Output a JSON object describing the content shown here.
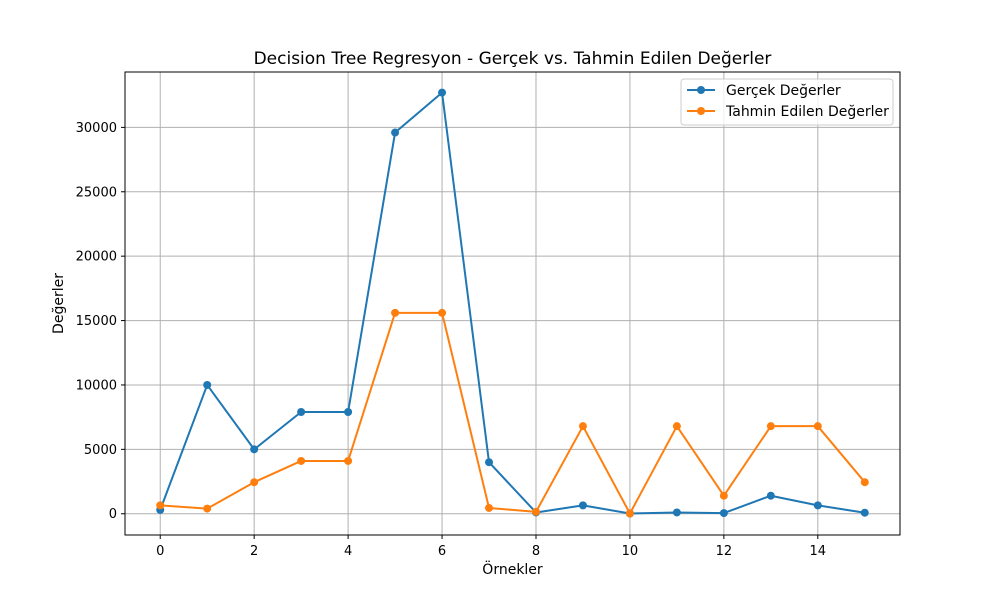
{
  "chart_data": {
    "type": "line",
    "title": "Decision Tree Regresyon - Gerçek vs. Tahmin Edilen Değerler",
    "xlabel": "Örnekler",
    "ylabel": "Değerler",
    "x": [
      0,
      1,
      2,
      3,
      4,
      5,
      6,
      7,
      8,
      9,
      10,
      11,
      12,
      13,
      14,
      15
    ],
    "xlim": [
      -0.75,
      15.75
    ],
    "ylim": [
      -1650,
      34300
    ],
    "x_ticks": [
      0,
      2,
      4,
      6,
      8,
      10,
      12,
      14
    ],
    "y_ticks": [
      0,
      5000,
      10000,
      15000,
      20000,
      25000,
      30000
    ],
    "grid": true,
    "legend_position": "top-right",
    "series": [
      {
        "name": "Gerçek Değerler",
        "color": "#1f77b4",
        "marker": "circle",
        "values": [
          300,
          10000,
          5000,
          7900,
          7900,
          29600,
          32700,
          4000,
          100,
          650,
          20,
          100,
          50,
          1400,
          650,
          80
        ]
      },
      {
        "name": "Tahmin Edilen Değerler",
        "color": "#ff7f0e",
        "marker": "circle",
        "values": [
          650,
          400,
          2450,
          4100,
          4100,
          15600,
          15600,
          450,
          150,
          6800,
          20,
          6800,
          1400,
          6800,
          6800,
          2450
        ]
      }
    ]
  }
}
